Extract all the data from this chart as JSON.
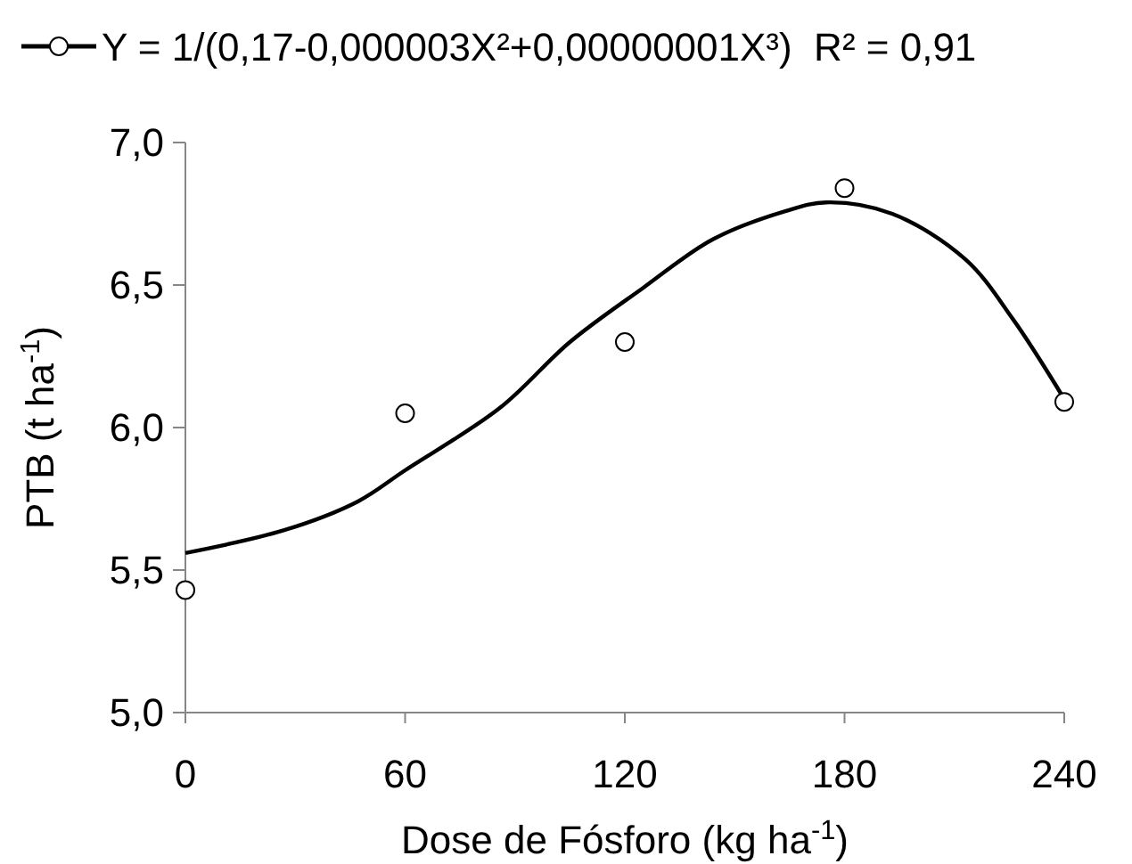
{
  "chart_data": {
    "type": "scatter",
    "xlabel": "Dose de Fósforo (kg ha$^{-1}$)",
    "ylabel": "PTB (t ha$^{-1}$)",
    "xlim": [
      0,
      240
    ],
    "xticks": [
      0,
      60,
      120,
      180,
      240
    ],
    "ylim": [
      5.0,
      7.0
    ],
    "yticks": [
      {
        "value": 5.0,
        "label": "5,0"
      },
      {
        "value": 5.5,
        "label": "5,5"
      },
      {
        "value": 6.0,
        "label": "6,0"
      },
      {
        "value": 6.5,
        "label": "6,5"
      },
      {
        "value": 7.0,
        "label": "7,0"
      }
    ],
    "grid": false,
    "legend": "top",
    "series": [
      {
        "type": "scatter",
        "name": "Y = 1/(0,17-0,000003X²+0,00000001X³)  R² = 0,91",
        "color": "#000000",
        "marker": "circle",
        "x": [
          0,
          60,
          120,
          180,
          240
        ],
        "values": [
          5.43,
          6.05,
          6.3,
          6.84,
          6.09
        ]
      },
      {
        "type": "line",
        "color": "#000000",
        "marker": "none",
        "x": [
          0,
          27,
          47,
          60,
          86,
          105,
          125,
          144,
          164,
          175,
          193,
          213,
          226,
          240
        ],
        "values": [
          5.56,
          5.64,
          5.74,
          5.85,
          6.07,
          6.3,
          6.49,
          6.66,
          6.76,
          6.79,
          6.75,
          6.59,
          6.38,
          6.1
        ]
      }
    ]
  }
}
